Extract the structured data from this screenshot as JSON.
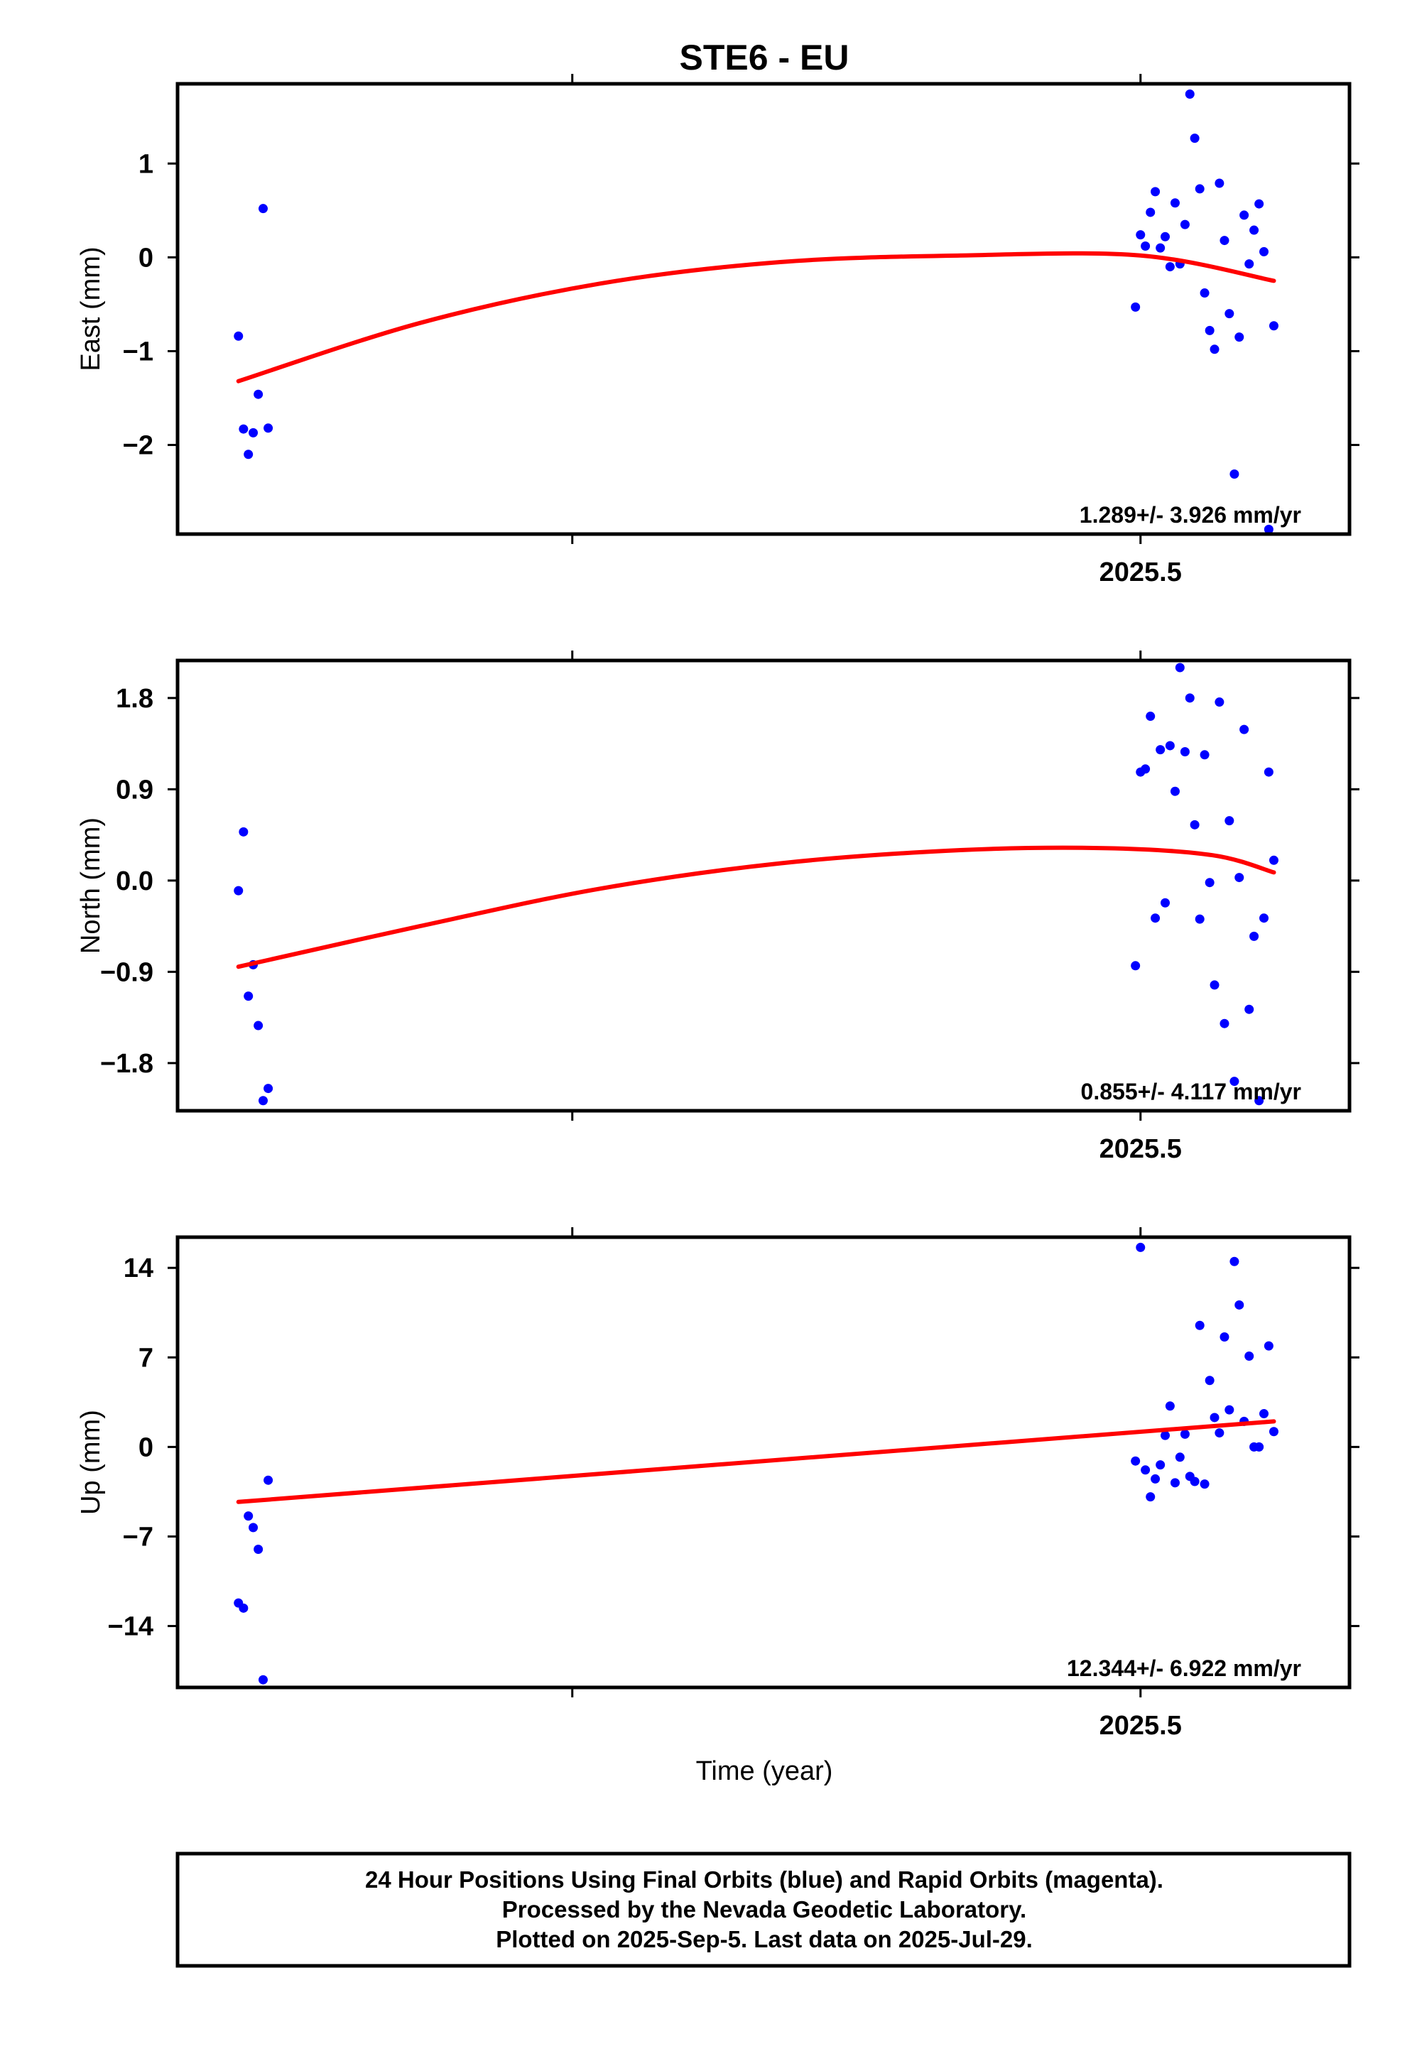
{
  "chart_data": {
    "type": "scatter",
    "title": "STE6 - EU",
    "xlabel": "Time (year)",
    "x_tick_labels": [
      "2025.5",
      "2025.5",
      "2025.5"
    ],
    "colors": {
      "final_orbits": "#0000ff",
      "rapid_orbits": "#ff00ff",
      "fit": "#ff0000"
    },
    "panels": [
      {
        "name": "east",
        "ylabel": "East (mm)",
        "ylim": [
          -2.95,
          1.85
        ],
        "yticks": [
          -2,
          -1,
          0,
          1
        ],
        "ytick_labels": [
          "−2",
          "−1",
          "0",
          "1"
        ],
        "rate_label": "1.289+/- 3.926 mm/yr",
        "points": [
          [
            2024.9993,
            -0.84
          ],
          [
            2025.0021,
            -1.83
          ],
          [
            2025.0048,
            -2.1
          ],
          [
            2025.0075,
            -1.87
          ],
          [
            2025.0103,
            -1.46
          ],
          [
            2025.013,
            0.52
          ],
          [
            2025.0158,
            -1.82
          ],
          [
            2025.4972,
            -0.53
          ],
          [
            2025.5,
            0.24
          ],
          [
            2025.5027,
            0.12
          ],
          [
            2025.5055,
            0.48
          ],
          [
            2025.5082,
            0.7
          ],
          [
            2025.511,
            0.1
          ],
          [
            2025.5137,
            0.22
          ],
          [
            2025.5164,
            -0.1
          ],
          [
            2025.5192,
            0.58
          ],
          [
            2025.5219,
            -0.07
          ],
          [
            2025.5247,
            0.35
          ],
          [
            2025.5274,
            1.74
          ],
          [
            2025.5301,
            1.27
          ],
          [
            2025.5329,
            0.73
          ],
          [
            2025.5356,
            -0.38
          ],
          [
            2025.5384,
            -0.78
          ],
          [
            2025.5411,
            -0.98
          ],
          [
            2025.5438,
            0.79
          ],
          [
            2025.5466,
            0.18
          ],
          [
            2025.5493,
            -0.6
          ],
          [
            2025.5521,
            -2.31
          ],
          [
            2025.5548,
            -0.85
          ],
          [
            2025.5575,
            0.45
          ],
          [
            2025.5603,
            -0.07
          ],
          [
            2025.563,
            0.29
          ],
          [
            2025.5658,
            0.57
          ],
          [
            2025.5685,
            0.06
          ],
          [
            2025.5712,
            -2.9
          ],
          [
            2025.574,
            -0.73
          ]
        ],
        "fit": [
          [
            2024.9993,
            -1.32
          ],
          [
            2025.1,
            -0.7
          ],
          [
            2025.2,
            -0.28
          ],
          [
            2025.3,
            -0.05
          ],
          [
            2025.4,
            0.02
          ],
          [
            2025.5,
            0.02
          ],
          [
            2025.574,
            -0.25
          ]
        ]
      },
      {
        "name": "north",
        "ylabel": "North (mm)",
        "ylim": [
          -2.27,
          2.17
        ],
        "yticks": [
          -1.8,
          -0.9,
          0.0,
          0.9,
          1.8
        ],
        "ytick_labels": [
          "−1.8",
          "−0.9",
          "0.0",
          "0.9",
          "1.8"
        ],
        "rate_label": "0.855+/- 4.117 mm/yr",
        "points": [
          [
            2024.9993,
            -0.1
          ],
          [
            2025.0021,
            0.48
          ],
          [
            2025.0048,
            -1.14
          ],
          [
            2025.0075,
            -0.83
          ],
          [
            2025.0103,
            -1.43
          ],
          [
            2025.013,
            -2.17
          ],
          [
            2025.0158,
            -2.05
          ],
          [
            2025.4972,
            -0.84
          ],
          [
            2025.5,
            1.07
          ],
          [
            2025.5027,
            1.1
          ],
          [
            2025.5055,
            1.62
          ],
          [
            2025.5082,
            -0.37
          ],
          [
            2025.511,
            1.29
          ],
          [
            2025.5137,
            -0.22
          ],
          [
            2025.5164,
            1.33
          ],
          [
            2025.5192,
            0.88
          ],
          [
            2025.5219,
            2.1
          ],
          [
            2025.5247,
            1.27
          ],
          [
            2025.5274,
            1.8
          ],
          [
            2025.5301,
            0.55
          ],
          [
            2025.5329,
            -0.38
          ],
          [
            2025.5356,
            1.24
          ],
          [
            2025.5384,
            -0.02
          ],
          [
            2025.5411,
            -1.03
          ],
          [
            2025.5438,
            1.76
          ],
          [
            2025.5466,
            -1.41
          ],
          [
            2025.5493,
            0.59
          ],
          [
            2025.5521,
            -1.98
          ],
          [
            2025.5548,
            0.03
          ],
          [
            2025.5575,
            1.49
          ],
          [
            2025.5603,
            -1.27
          ],
          [
            2025.563,
            -0.55
          ],
          [
            2025.5658,
            -2.17
          ],
          [
            2025.5685,
            -0.37
          ],
          [
            2025.5712,
            1.07
          ],
          [
            2025.574,
            0.2
          ]
        ],
        "fit": [
          [
            2024.9993,
            -0.85
          ],
          [
            2025.1,
            -0.45
          ],
          [
            2025.2,
            -0.08
          ],
          [
            2025.3,
            0.17
          ],
          [
            2025.4,
            0.3
          ],
          [
            2025.48,
            0.32
          ],
          [
            2025.54,
            0.25
          ],
          [
            2025.574,
            0.08
          ]
        ]
      },
      {
        "name": "up",
        "ylabel": "Up (mm)",
        "ylim": [
          -18.8,
          16.4
        ],
        "yticks": [
          -14,
          -7,
          0,
          7,
          14
        ],
        "ytick_labels": [
          "−14",
          "−7",
          "0",
          "7",
          "14"
        ],
        "rate_label": "12.344+/- 6.922 mm/yr",
        "points": [
          [
            2024.9993,
            -12.2
          ],
          [
            2025.0021,
            -12.6
          ],
          [
            2025.0048,
            -5.4
          ],
          [
            2025.0075,
            -6.3
          ],
          [
            2025.0103,
            -8.0
          ],
          [
            2025.013,
            -18.2
          ],
          [
            2025.0158,
            -2.6
          ],
          [
            2025.4972,
            -1.1
          ],
          [
            2025.5,
            15.6
          ],
          [
            2025.5027,
            -1.8
          ],
          [
            2025.5055,
            -3.9
          ],
          [
            2025.5082,
            -2.5
          ],
          [
            2025.511,
            -1.4
          ],
          [
            2025.5137,
            0.9
          ],
          [
            2025.5164,
            3.2
          ],
          [
            2025.5192,
            -2.8
          ],
          [
            2025.5219,
            -0.8
          ],
          [
            2025.5247,
            1.0
          ],
          [
            2025.5274,
            -2.3
          ],
          [
            2025.5301,
            -2.7
          ],
          [
            2025.5329,
            9.5
          ],
          [
            2025.5356,
            -2.9
          ],
          [
            2025.5384,
            5.2
          ],
          [
            2025.5411,
            2.3
          ],
          [
            2025.5438,
            1.1
          ],
          [
            2025.5466,
            8.6
          ],
          [
            2025.5493,
            2.9
          ],
          [
            2025.5521,
            14.5
          ],
          [
            2025.5548,
            11.1
          ],
          [
            2025.5575,
            2.0
          ],
          [
            2025.5603,
            7.1
          ],
          [
            2025.563,
            0.0
          ],
          [
            2025.5658,
            0.0
          ],
          [
            2025.5685,
            2.6
          ],
          [
            2025.5712,
            7.9
          ],
          [
            2025.574,
            1.2
          ]
        ],
        "fit": [
          [
            2024.9993,
            -4.3
          ],
          [
            2025.574,
            2.0
          ]
        ]
      }
    ]
  },
  "footer": {
    "line1": "24 Hour Positions Using Final Orbits (blue) and Rapid Orbits (magenta).",
    "line2": "Processed by the Nevada Geodetic Laboratory.",
    "line3": "Plotted on 2025-Sep-5. Last data on 2025-Jul-29."
  }
}
